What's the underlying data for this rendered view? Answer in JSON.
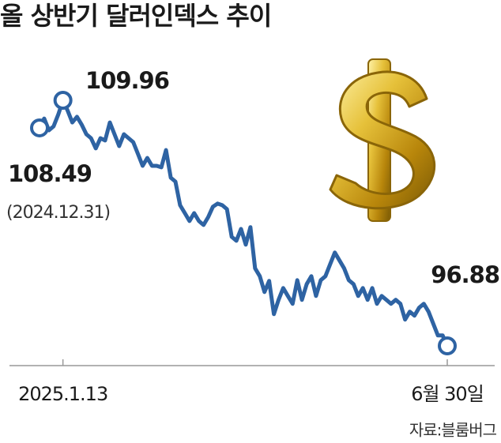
{
  "chart_data": {
    "type": "line",
    "title": "올 상반기 달러인덱스 추이",
    "source": "자료:블룸버그",
    "annotation": "(2024.12.31)",
    "categories": [
      null,
      null,
      null,
      null,
      null,
      "2025.1.13",
      null,
      null,
      null,
      null,
      null,
      null,
      null,
      null,
      null,
      null,
      null,
      null,
      null,
      null,
      null,
      null,
      null,
      null,
      null,
      null,
      null,
      null,
      null,
      null,
      null,
      null,
      null,
      null,
      null,
      null,
      null,
      null,
      null,
      null,
      null,
      null,
      null,
      null,
      null,
      null,
      null,
      null,
      null,
      null,
      null,
      null,
      null,
      null,
      null,
      null,
      null,
      null,
      null,
      null,
      null,
      null,
      null,
      null,
      null,
      null,
      null,
      null,
      null,
      null,
      null,
      null,
      null,
      null,
      null,
      null,
      null,
      null,
      null,
      null,
      null,
      null,
      null,
      null,
      null,
      null,
      null,
      "6월 30일"
    ],
    "series": [
      {
        "name": "달러인덱스",
        "color": "#2e63a3",
        "values": [
          108.49,
          108.99,
          108.36,
          108.57,
          109.2,
          109.96,
          109.41,
          108.78,
          109.08,
          108.66,
          108.15,
          107.94,
          107.4,
          107.94,
          107.82,
          108.78,
          108.15,
          107.52,
          108.15,
          107.94,
          107.73,
          107.1,
          106.47,
          106.89,
          106.47,
          106.47,
          106.39,
          107.31,
          105.84,
          105.63,
          104.37,
          103.95,
          103.53,
          103.95,
          103.53,
          103.32,
          103.74,
          104.29,
          104.46,
          104.37,
          104.16,
          102.69,
          102.48,
          103.11,
          102.27,
          103.2,
          101.01,
          100.59,
          99.75,
          100.34,
          98.57,
          99.33,
          99.96,
          99.54,
          99.12,
          100.38,
          99.33,
          100.17,
          100.59,
          99.54,
          100.38,
          100.59,
          101.22,
          101.85,
          101.43,
          101.01,
          100.38,
          100.17,
          99.54,
          99.96,
          99.33,
          99.96,
          99.12,
          99.54,
          99.33,
          99.12,
          99.33,
          99.12,
          98.28,
          98.7,
          98.49,
          98.91,
          99.12,
          98.7,
          98.07,
          97.44,
          97.44,
          96.88
        ]
      }
    ]
  }
}
